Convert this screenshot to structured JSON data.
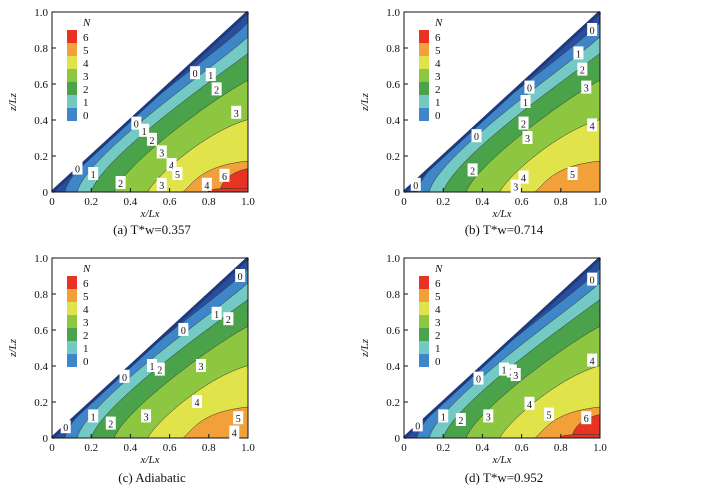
{
  "chart_data": [
    {
      "type": "contour",
      "caption": "(a) T*w=0.357",
      "xlabel": "x/Lx",
      "ylabel": "z/Lz",
      "xlim": [
        0,
        1
      ],
      "ylim": [
        0,
        1
      ],
      "xticks": [
        "0",
        "0.2",
        "0.4",
        "0.6",
        "0.8",
        "1.0"
      ],
      "yticks": [
        "0",
        "0.2",
        "0.4",
        "0.6",
        "0.8",
        "1.0"
      ],
      "legend_title": "N",
      "legend_levels": [
        "6",
        "5",
        "4",
        "3",
        "2",
        "1",
        "0"
      ],
      "max_level": 6,
      "contour_labels": [
        {
          "text": "0",
          "x": 0.73,
          "z": 0.66
        },
        {
          "text": "1",
          "x": 0.81,
          "z": 0.65
        },
        {
          "text": "2",
          "x": 0.84,
          "z": 0.57
        },
        {
          "text": "3",
          "x": 0.94,
          "z": 0.44
        },
        {
          "text": "0",
          "x": 0.43,
          "z": 0.38
        },
        {
          "text": "1",
          "x": 0.47,
          "z": 0.34
        },
        {
          "text": "2",
          "x": 0.51,
          "z": 0.29
        },
        {
          "text": "3",
          "x": 0.56,
          "z": 0.22
        },
        {
          "text": "4",
          "x": 0.61,
          "z": 0.15
        },
        {
          "text": "5",
          "x": 0.64,
          "z": 0.1
        },
        {
          "text": "6",
          "x": 0.88,
          "z": 0.09
        },
        {
          "text": "4",
          "x": 0.79,
          "z": 0.04
        },
        {
          "text": "3",
          "x": 0.56,
          "z": 0.04
        },
        {
          "text": "2",
          "x": 0.35,
          "z": 0.05
        },
        {
          "text": "1",
          "x": 0.21,
          "z": 0.1
        },
        {
          "text": "0",
          "x": 0.13,
          "z": 0.13
        }
      ]
    },
    {
      "type": "contour",
      "caption": "(b) T*w=0.714",
      "xlabel": "x/Lx",
      "ylabel": "z/Lz",
      "xlim": [
        0,
        1
      ],
      "ylim": [
        0,
        1
      ],
      "xticks": [
        "0",
        "0.2",
        "0.4",
        "0.6",
        "0.8",
        "1.0"
      ],
      "yticks": [
        "0",
        "0.2",
        "0.4",
        "0.6",
        "0.8",
        "1.0"
      ],
      "legend_title": "N",
      "legend_levels": [
        "6",
        "5",
        "4",
        "3",
        "2",
        "1",
        "0"
      ],
      "max_level": 5,
      "contour_labels": [
        {
          "text": "0",
          "x": 0.96,
          "z": 0.9
        },
        {
          "text": "1",
          "x": 0.89,
          "z": 0.77
        },
        {
          "text": "2",
          "x": 0.91,
          "z": 0.68
        },
        {
          "text": "3",
          "x": 0.93,
          "z": 0.58
        },
        {
          "text": "4",
          "x": 0.96,
          "z": 0.37
        },
        {
          "text": "0",
          "x": 0.64,
          "z": 0.58
        },
        {
          "text": "1",
          "x": 0.62,
          "z": 0.5
        },
        {
          "text": "2",
          "x": 0.61,
          "z": 0.38
        },
        {
          "text": "3",
          "x": 0.63,
          "z": 0.3
        },
        {
          "text": "0",
          "x": 0.37,
          "z": 0.31
        },
        {
          "text": "2",
          "x": 0.35,
          "z": 0.12
        },
        {
          "text": "4",
          "x": 0.61,
          "z": 0.08
        },
        {
          "text": "5",
          "x": 0.86,
          "z": 0.1
        },
        {
          "text": "3",
          "x": 0.57,
          "z": 0.03
        },
        {
          "text": "0",
          "x": 0.06,
          "z": 0.04
        }
      ]
    },
    {
      "type": "contour",
      "caption": "(c) Adiabatic",
      "xlabel": "x/Lx",
      "ylabel": "z/Lz",
      "xlim": [
        0,
        1
      ],
      "ylim": [
        0,
        1
      ],
      "xticks": [
        "0",
        "0.2",
        "0.4",
        "0.6",
        "0.8",
        "1.0"
      ],
      "yticks": [
        "0",
        "0.2",
        "0.4",
        "0.6",
        "0.8",
        "1.0"
      ],
      "legend_title": "N",
      "legend_levels": [
        "6",
        "5",
        "4",
        "3",
        "2",
        "1",
        "0"
      ],
      "max_level": 5,
      "contour_labels": [
        {
          "text": "0",
          "x": 0.96,
          "z": 0.9
        },
        {
          "text": "1",
          "x": 0.84,
          "z": 0.69
        },
        {
          "text": "2",
          "x": 0.9,
          "z": 0.66
        },
        {
          "text": "0",
          "x": 0.67,
          "z": 0.6
        },
        {
          "text": "1",
          "x": 0.51,
          "z": 0.4
        },
        {
          "text": "2",
          "x": 0.55,
          "z": 0.38
        },
        {
          "text": "3",
          "x": 0.76,
          "z": 0.4
        },
        {
          "text": "0",
          "x": 0.37,
          "z": 0.34
        },
        {
          "text": "4",
          "x": 0.74,
          "z": 0.2
        },
        {
          "text": "5",
          "x": 0.95,
          "z": 0.11
        },
        {
          "text": "4",
          "x": 0.93,
          "z": 0.03
        },
        {
          "text": "3",
          "x": 0.48,
          "z": 0.12
        },
        {
          "text": "2",
          "x": 0.3,
          "z": 0.08
        },
        {
          "text": "1",
          "x": 0.21,
          "z": 0.12
        },
        {
          "text": "0",
          "x": 0.07,
          "z": 0.06
        }
      ]
    },
    {
      "type": "contour",
      "caption": "(d) T*w=0.952",
      "xlabel": "x/Lx",
      "ylabel": "z/Lz",
      "xlim": [
        0,
        1
      ],
      "ylim": [
        0,
        1
      ],
      "xticks": [
        "0",
        "0.2",
        "0.4",
        "0.6",
        "0.8",
        "1.0"
      ],
      "yticks": [
        "0",
        "0.2",
        "0.4",
        "0.6",
        "0.8",
        "1.0"
      ],
      "legend_title": "N",
      "legend_levels": [
        "6",
        "5",
        "4",
        "3",
        "2",
        "1",
        "0"
      ],
      "max_level": 6,
      "contour_labels": [
        {
          "text": "0",
          "x": 0.96,
          "z": 0.88
        },
        {
          "text": "4",
          "x": 0.96,
          "z": 0.43
        },
        {
          "text": "1",
          "x": 0.51,
          "z": 0.38
        },
        {
          "text": "2",
          "x": 0.55,
          "z": 0.37
        },
        {
          "text": "3",
          "x": 0.57,
          "z": 0.35
        },
        {
          "text": "0",
          "x": 0.38,
          "z": 0.33
        },
        {
          "text": "4",
          "x": 0.64,
          "z": 0.19
        },
        {
          "text": "5",
          "x": 0.74,
          "z": 0.13
        },
        {
          "text": "6",
          "x": 0.93,
          "z": 0.11
        },
        {
          "text": "3",
          "x": 0.43,
          "z": 0.12
        },
        {
          "text": "2",
          "x": 0.29,
          "z": 0.1
        },
        {
          "text": "1",
          "x": 0.2,
          "z": 0.12
        },
        {
          "text": "0",
          "x": 0.07,
          "z": 0.07
        }
      ]
    }
  ],
  "colors": {
    "levels": [
      "#2a4e9e",
      "#3f86c8",
      "#73c9c3",
      "#4aa24a",
      "#8dc641",
      "#e1e34a",
      "#f2a03a",
      "#e83322"
    ],
    "background": "#ffffff"
  }
}
